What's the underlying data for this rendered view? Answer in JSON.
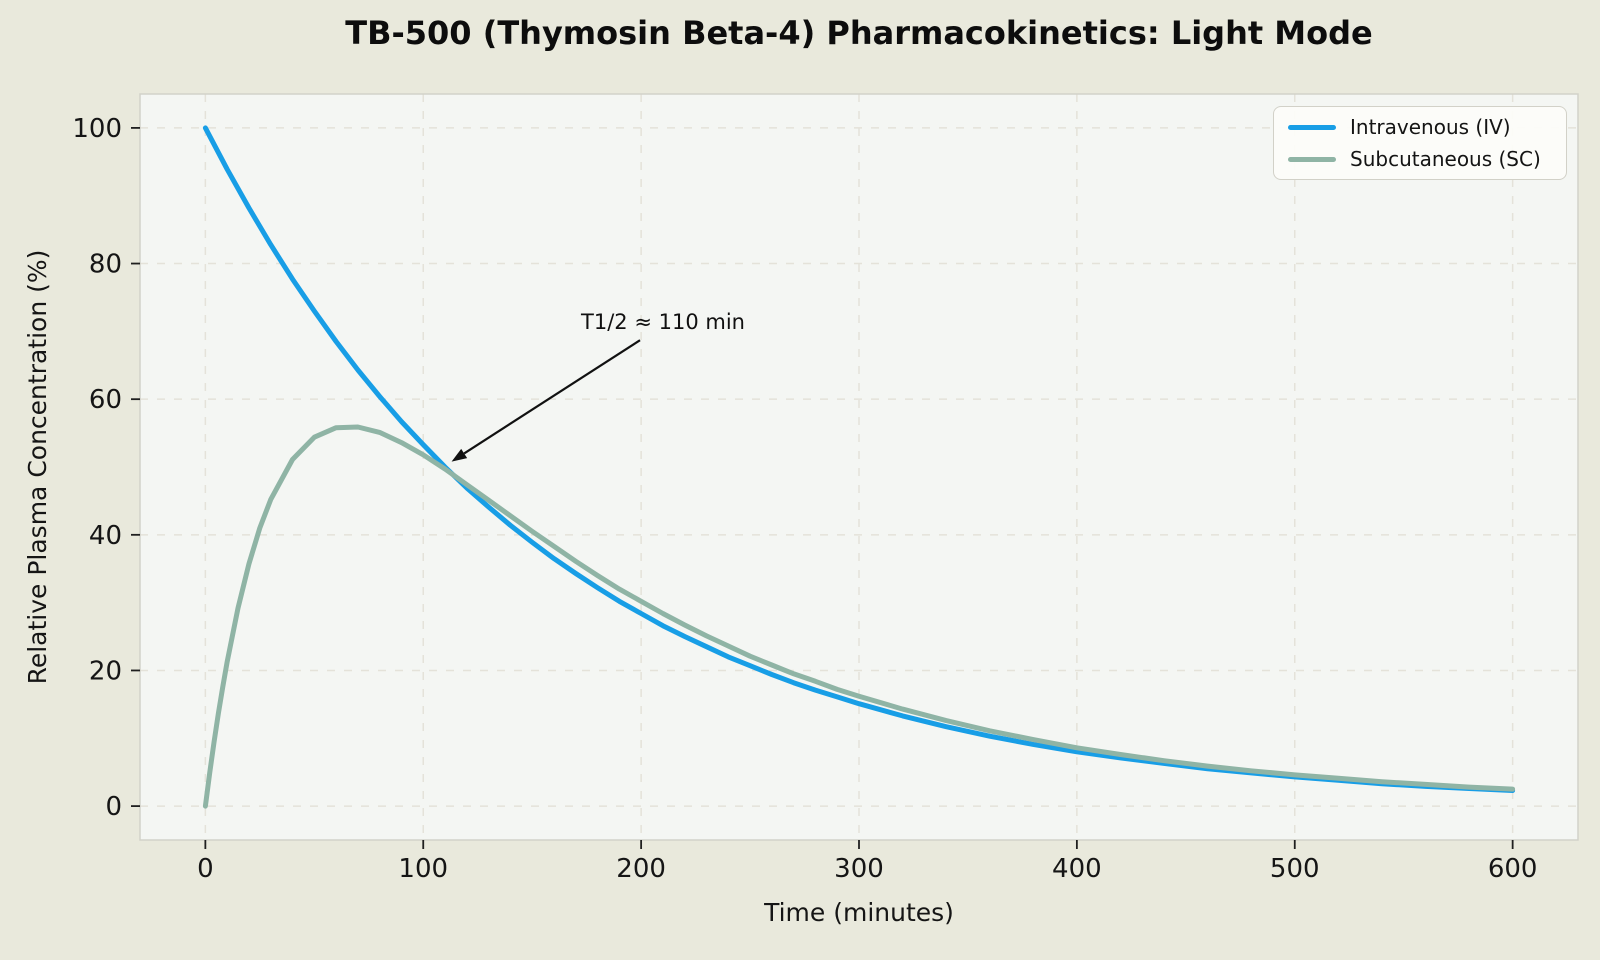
{
  "title": "TB-500 (Thymosin Beta-4) Pharmacokinetics: Light Mode",
  "colors": {
    "figure_background": "#e9e9dc",
    "plot_background": "#f4f6f3",
    "gridline": "#e4e2d9",
    "spine": "#d2d2c9",
    "tick": "#1f1f1f",
    "text": "#151515",
    "iv_line": "#189ee6",
    "sc_line": "#8fb4a5",
    "legend_background": "#fcfcf9",
    "legend_border": "#d2d1c8",
    "annotation_arrow": "#111111"
  },
  "legend": {
    "entries": [
      {
        "label": "Intravenous (IV)"
      },
      {
        "label": "Subcutaneous (SC)"
      }
    ]
  },
  "chart_data": {
    "type": "line",
    "title": "TB-500 (Thymosin Beta-4) Pharmacokinetics: Light Mode",
    "xlabel": "Time (minutes)",
    "ylabel": "Relative Plasma Concentration (%)",
    "xlim": [
      0,
      600
    ],
    "ylim": [
      0,
      100
    ],
    "xlim_plot": [
      -30,
      630
    ],
    "ylim_plot": [
      -5,
      105
    ],
    "x_ticks": [
      0,
      100,
      200,
      300,
      400,
      500,
      600
    ],
    "y_ticks": [
      0,
      20,
      40,
      60,
      80,
      100
    ],
    "grid": "dashed",
    "legend_position": "upper-right",
    "annotation": {
      "label": "T1/2 ≈ 110 min",
      "xy": [
        113,
        50.8
      ],
      "arrow_tail_xy": [
        199.5,
        68.7
      ],
      "text_xy": [
        210,
        71.4
      ]
    },
    "series": [
      {
        "id": "iv",
        "name": "Intravenous (IV)",
        "color": "#189ee6",
        "line_width": 5,
        "model": "C(t) = 100 * exp(-ln(2)/110 * t)",
        "half_life_min": 110,
        "x": [
          0,
          10,
          20,
          30,
          40,
          50,
          60,
          70,
          80,
          90,
          100,
          110,
          120,
          130,
          140,
          150,
          160,
          170,
          180,
          190,
          200,
          210,
          220,
          230,
          240,
          250,
          260,
          270,
          280,
          290,
          300,
          320,
          340,
          360,
          380,
          400,
          420,
          440,
          460,
          480,
          500,
          520,
          540,
          560,
          580,
          600
        ],
        "y": [
          100,
          93.9,
          88.2,
          82.8,
          77.7,
          73,
          68.5,
          64.3,
          60.4,
          56.7,
          53.3,
          50,
          46.9,
          44.1,
          41.4,
          38.9,
          36.5,
          34.3,
          32.2,
          30.2,
          28.4,
          26.6,
          25,
          23.5,
          22,
          20.7,
          19.4,
          18.2,
          17.1,
          16.1,
          15.1,
          13.3,
          11.7,
          10.3,
          9.1,
          8,
          7.1,
          6.3,
          5.5,
          4.9,
          4.3,
          3.8,
          3.3,
          2.9,
          2.6,
          2.3
        ]
      },
      {
        "id": "sc",
        "name": "Subcutaneous (SC)",
        "color": "#8fb4a5",
        "line_width": 5,
        "model": "C(t) = 107.3 * (exp(-0.0063*t) - exp(-0.03*t))",
        "peak": {
          "t": 68,
          "value": 55.9
        },
        "x": [
          0,
          2,
          4,
          6,
          8,
          10,
          15,
          20,
          25,
          30,
          40,
          50,
          60,
          70,
          80,
          90,
          100,
          110,
          120,
          130,
          140,
          150,
          160,
          170,
          180,
          190,
          200,
          210,
          220,
          230,
          240,
          250,
          260,
          270,
          280,
          290,
          300,
          320,
          340,
          360,
          380,
          400,
          420,
          440,
          460,
          480,
          500,
          520,
          540,
          560,
          580,
          600
        ],
        "y": [
          0,
          4.9,
          9.5,
          13.7,
          17.6,
          21.3,
          29.2,
          35.7,
          41,
          45.2,
          51.1,
          54.4,
          55.8,
          55.9,
          55.1,
          53.6,
          51.8,
          49.7,
          47.4,
          45.1,
          42.8,
          40.5,
          38.3,
          36.1,
          34,
          32,
          30.2,
          28.4,
          26.7,
          25.1,
          23.6,
          22.1,
          20.8,
          19.5,
          18.4,
          17.2,
          16.2,
          14.3,
          12.6,
          11.1,
          9.8,
          8.6,
          7.6,
          6.7,
          5.9,
          5.2,
          4.6,
          4.1,
          3.6,
          3.2,
          2.8,
          2.5
        ]
      }
    ]
  }
}
